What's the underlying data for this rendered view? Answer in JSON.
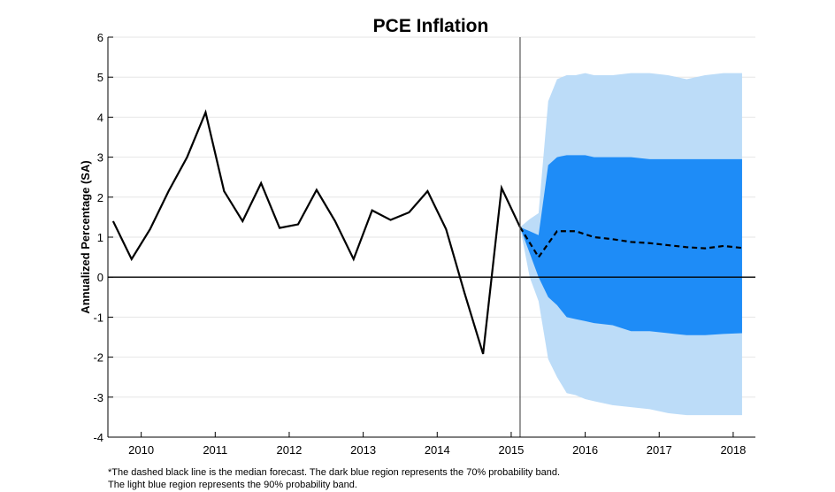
{
  "chart_data": {
    "type": "line",
    "title": "PCE Inflation",
    "ylabel": "Annualized Percentage (SA)",
    "xlabel": "",
    "ylim": [
      -4,
      6
    ],
    "yticks": [
      "6",
      "5",
      "4",
      "3",
      "2",
      "1",
      "0",
      "-1",
      "-2",
      "-3",
      "-4"
    ],
    "xlim": [
      2009.55,
      2018.3
    ],
    "xticks": [
      {
        "label": "2010",
        "x": 2010.0
      },
      {
        "label": "2011",
        "x": 2011.0
      },
      {
        "label": "2012",
        "x": 2012.0
      },
      {
        "label": "2013",
        "x": 2013.0
      },
      {
        "label": "2014",
        "x": 2014.0
      },
      {
        "label": "2015",
        "x": 2015.0
      },
      {
        "label": "2016",
        "x": 2016.0
      },
      {
        "label": "2017",
        "x": 2017.0
      },
      {
        "label": "2018",
        "x": 2018.0
      }
    ],
    "forecast_start": 2015.12,
    "series": [
      {
        "name": "PCE inflation (actual)",
        "style": "solid",
        "color": "#000000",
        "x": [
          2009.62,
          2009.87,
          2010.12,
          2010.37,
          2010.62,
          2010.87,
          2011.12,
          2011.37,
          2011.62,
          2011.87,
          2012.12,
          2012.37,
          2012.62,
          2012.87,
          2013.12,
          2013.37,
          2013.62,
          2013.87,
          2014.12,
          2014.37,
          2014.62,
          2014.87,
          2015.12
        ],
        "y": [
          1.4,
          0.45,
          1.2,
          2.15,
          3.0,
          4.12,
          2.15,
          1.4,
          2.35,
          1.23,
          1.32,
          2.18,
          1.4,
          0.45,
          1.67,
          1.43,
          1.62,
          2.15,
          1.2,
          -0.4,
          -1.92,
          2.23,
          1.25
        ]
      },
      {
        "name": "Median forecast",
        "style": "dashed",
        "color": "#000000",
        "x": [
          2015.12,
          2015.37,
          2015.62,
          2015.87,
          2016.12,
          2016.37,
          2016.62,
          2016.87,
          2017.12,
          2017.37,
          2017.62,
          2017.87,
          2018.12
        ],
        "y": [
          1.25,
          0.5,
          1.15,
          1.15,
          1.0,
          0.95,
          0.88,
          0.85,
          0.8,
          0.75,
          0.72,
          0.78,
          0.73
        ]
      }
    ],
    "bands": [
      {
        "name": "90% probability band",
        "color": "#bcdcf8",
        "x": [
          2015.12,
          2015.25,
          2015.37,
          2015.5,
          2015.62,
          2015.75,
          2015.87,
          2016.0,
          2016.12,
          2016.37,
          2016.62,
          2016.87,
          2017.12,
          2017.37,
          2017.62,
          2017.87,
          2018.12
        ],
        "upper": [
          1.25,
          1.45,
          1.6,
          4.4,
          4.95,
          5.05,
          5.05,
          5.1,
          5.05,
          5.05,
          5.1,
          5.1,
          5.05,
          4.95,
          5.05,
          5.1,
          5.1
        ],
        "lower": [
          1.25,
          0.0,
          -0.6,
          -2.05,
          -2.5,
          -2.9,
          -2.95,
          -3.05,
          -3.1,
          -3.2,
          -3.25,
          -3.3,
          -3.4,
          -3.45,
          -3.45,
          -3.45,
          -3.45
        ]
      },
      {
        "name": "70% probability band",
        "color": "#1e8cf7",
        "x": [
          2015.12,
          2015.25,
          2015.37,
          2015.5,
          2015.62,
          2015.75,
          2015.87,
          2016.0,
          2016.12,
          2016.37,
          2016.62,
          2016.87,
          2017.12,
          2017.37,
          2017.62,
          2017.87,
          2018.12
        ],
        "upper": [
          1.25,
          1.15,
          1.05,
          2.8,
          3.0,
          3.05,
          3.05,
          3.05,
          3.0,
          3.0,
          3.0,
          2.95,
          2.95,
          2.95,
          2.95,
          2.95,
          2.95
        ],
        "lower": [
          1.25,
          0.6,
          0.0,
          -0.5,
          -0.7,
          -1.0,
          -1.05,
          -1.1,
          -1.15,
          -1.2,
          -1.35,
          -1.35,
          -1.4,
          -1.45,
          -1.45,
          -1.42,
          -1.4
        ]
      }
    ],
    "annotations": [
      "*The dashed black line is the median forecast. The dark blue region represents the 70% probability band.",
      "The light blue region represents the 90% probability band."
    ]
  }
}
